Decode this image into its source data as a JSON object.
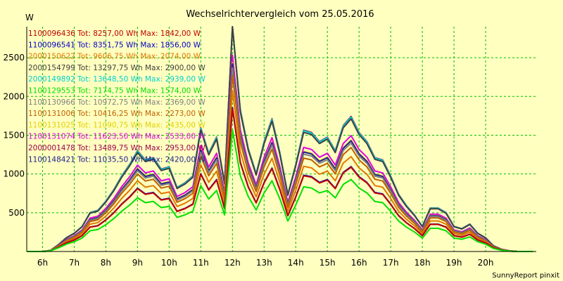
{
  "chart_data": {
    "type": "line",
    "title": "Wechselrichtervergleich vom 25.05.2016",
    "ylabel": "W",
    "xlabel": "",
    "footer": "SunnyReport pinxit",
    "ylim": [
      0,
      2900
    ],
    "xlim": [
      5.5,
      21.6
    ],
    "grid": true,
    "legend_position": "top-left",
    "y_ticks": [
      500,
      1000,
      1500,
      2000,
      2500
    ],
    "x_ticks": [
      "6h",
      "7h",
      "8h",
      "9h",
      "10h",
      "11h",
      "12h",
      "13h",
      "14h",
      "15h",
      "16h",
      "17h",
      "18h",
      "19h",
      "20h"
    ],
    "x_tick_values": [
      6,
      7,
      8,
      9,
      10,
      11,
      12,
      13,
      14,
      15,
      16,
      17,
      18,
      19,
      20
    ],
    "x": [
      5.5,
      5.75,
      6,
      6.25,
      6.5,
      6.75,
      7,
      7.25,
      7.5,
      7.75,
      8,
      8.25,
      8.5,
      8.75,
      9,
      9.25,
      9.5,
      9.75,
      10,
      10.25,
      10.5,
      10.75,
      11,
      11.25,
      11.5,
      11.75,
      12,
      12.25,
      12.5,
      12.75,
      13,
      13.25,
      13.5,
      13.75,
      14,
      14.25,
      14.5,
      14.75,
      15,
      15.25,
      15.5,
      15.75,
      16,
      16.25,
      16.5,
      16.75,
      17,
      17.25,
      17.5,
      17.75,
      18,
      18.25,
      18.5,
      18.75,
      19,
      19.25,
      19.5,
      19.75,
      20,
      20.25,
      20.5,
      20.75,
      21,
      21.25,
      21.5
    ],
    "shape": [
      0,
      0,
      0,
      0.005,
      0.03,
      0.06,
      0.08,
      0.11,
      0.17,
      0.18,
      0.22,
      0.27,
      0.33,
      0.38,
      0.44,
      0.4,
      0.41,
      0.36,
      0.37,
      0.28,
      0.3,
      0.33,
      0.54,
      0.43,
      0.5,
      0.3,
      1.0,
      0.62,
      0.45,
      0.34,
      0.48,
      0.58,
      0.43,
      0.25,
      0.38,
      0.53,
      0.52,
      0.48,
      0.5,
      0.44,
      0.55,
      0.59,
      0.52,
      0.48,
      0.41,
      0.4,
      0.33,
      0.25,
      0.2,
      0.16,
      0.11,
      0.19,
      0.19,
      0.17,
      0.11,
      0.1,
      0.12,
      0.08,
      0.06,
      0.025,
      0.01,
      0.003,
      0,
      0,
      0
    ],
    "series": [
      {
        "label": "1100096436 Tot: 8257,00 Wh Max: 1842,00 W",
        "color": "#c00000",
        "scale": 1842
      },
      {
        "label": "1100096541 Tot: 8351,75 Wh Max: 1856,00 W",
        "color": "#0000c0",
        "scale": 1856
      },
      {
        "label": "2000150622 Tot: 9606,75 Wh Max: 2074,00 W",
        "color": "#e07800",
        "scale": 2074
      },
      {
        "label": "2000154799 Tot: 13297,75 Wh Max: 2900,00 W",
        "color": "#404040",
        "scale": 2900
      },
      {
        "label": "2000149892 Tot: 13648,50 Wh Max: 2939,00 W",
        "color": "#00d0d0",
        "scale": 2939
      },
      {
        "label": "1100129553 Tot: 7174,75 Wh Max: 1574,00 W",
        "color": "#00e000",
        "scale": 1574
      },
      {
        "label": "1100130966 Tot: 10972,75 Wh Max: 2369,00 W",
        "color": "#808080",
        "scale": 2369
      },
      {
        "label": "1100131006 Tot: 10416,25 Wh Max: 2273,00 W",
        "color": "#c06000",
        "scale": 2273
      },
      {
        "label": "1100131025 Tot: 11090,75 Wh Max: 2435,00 W",
        "color": "#e0d000",
        "scale": 2435
      },
      {
        "label": "1100131074 Tot: 11623,50 Wh Max: 2533,00 W",
        "color": "#e000e0",
        "scale": 2533
      },
      {
        "label": "2000001478 Tot: 13489,75 Wh Max: 2953,00 W",
        "color": "#a00050",
        "scale": 2953
      },
      {
        "label": "1100148421 Tot: 11035,50 Wh Max: 2420,00 W",
        "color": "#202090",
        "scale": 2420
      }
    ]
  }
}
